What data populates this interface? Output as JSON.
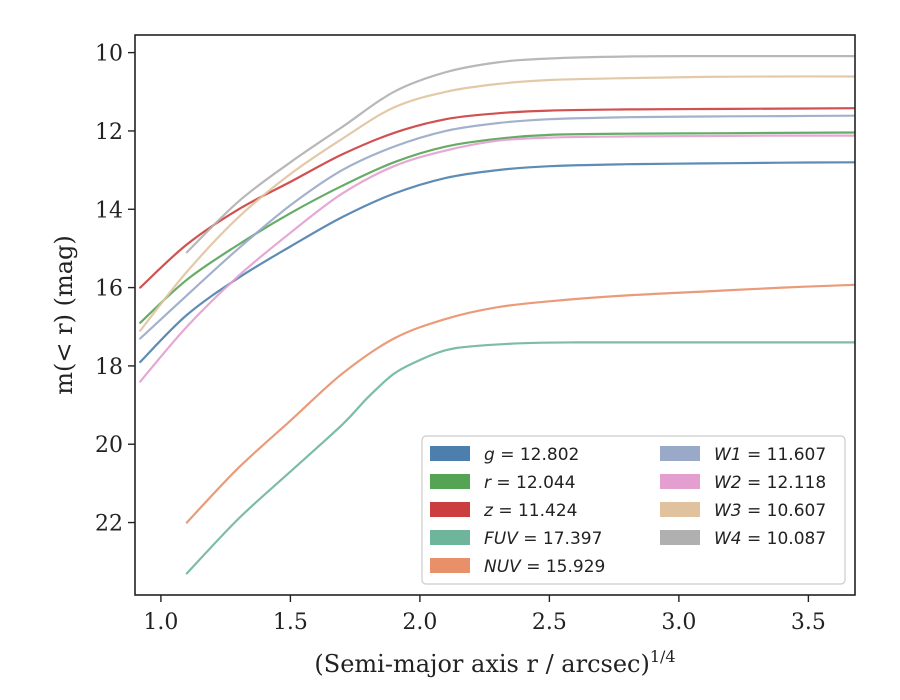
{
  "chart_data": {
    "type": "line",
    "title": "",
    "xlabel": "(Semi-major axis r / arcsec)",
    "xlabel_sup": "1/4",
    "ylabel": "m(< r) (mag)",
    "xlim": [
      0.9,
      3.68
    ],
    "ylim": [
      23.85,
      9.55
    ],
    "y_inverted": true,
    "x_ticks": [
      1.0,
      1.5,
      2.0,
      2.5,
      3.0,
      3.5
    ],
    "x_tick_labels": [
      "1.0",
      "1.5",
      "2.0",
      "2.5",
      "3.0",
      "3.5"
    ],
    "y_ticks": [
      10,
      12,
      14,
      16,
      18,
      20,
      22
    ],
    "y_tick_labels": [
      "10",
      "12",
      "14",
      "16",
      "18",
      "20",
      "22"
    ],
    "grid": false,
    "legend_position": "bottom-right",
    "legend_columns": 2,
    "series": [
      {
        "name": "g",
        "legend": "g = 12.802",
        "color": "#4c7fad",
        "x": [
          0.92,
          1.1,
          1.3,
          1.5,
          1.7,
          1.9,
          2.1,
          2.3,
          2.5,
          2.8,
          3.1,
          3.4,
          3.68
        ],
        "y": [
          17.9,
          16.7,
          15.75,
          14.95,
          14.2,
          13.6,
          13.2,
          13.0,
          12.9,
          12.85,
          12.83,
          12.81,
          12.8
        ]
      },
      {
        "name": "r",
        "legend": "r = 12.044",
        "color": "#55a355",
        "x": [
          0.92,
          1.1,
          1.3,
          1.5,
          1.7,
          1.9,
          2.1,
          2.3,
          2.5,
          2.8,
          3.1,
          3.4,
          3.68
        ],
        "y": [
          16.9,
          15.8,
          14.9,
          14.1,
          13.4,
          12.8,
          12.4,
          12.2,
          12.1,
          12.07,
          12.06,
          12.05,
          12.04
        ]
      },
      {
        "name": "z",
        "legend": "z = 11.424",
        "color": "#cc3e3e",
        "x": [
          0.92,
          1.1,
          1.3,
          1.5,
          1.7,
          1.9,
          2.1,
          2.3,
          2.5,
          2.8,
          3.1,
          3.4,
          3.68
        ],
        "y": [
          16.0,
          14.9,
          14.0,
          13.3,
          12.6,
          12.05,
          11.7,
          11.55,
          11.48,
          11.45,
          11.44,
          11.43,
          11.42
        ]
      },
      {
        "name": "FUV",
        "legend": "FUV = 17.397",
        "color": "#6fb59b",
        "x": [
          1.1,
          1.3,
          1.5,
          1.7,
          1.8,
          1.9,
          2.0,
          2.1,
          2.2,
          2.4,
          2.6,
          2.85,
          3.2,
          3.68
        ],
        "y": [
          23.3,
          21.9,
          20.7,
          19.5,
          18.8,
          18.2,
          17.85,
          17.6,
          17.5,
          17.42,
          17.4,
          17.4,
          17.4,
          17.4
        ]
      },
      {
        "name": "NUV",
        "legend": "NUV = 15.929",
        "color": "#e8906a",
        "x": [
          1.1,
          1.3,
          1.5,
          1.7,
          1.9,
          2.1,
          2.3,
          2.5,
          2.8,
          3.1,
          3.4,
          3.68
        ],
        "y": [
          22.0,
          20.6,
          19.4,
          18.2,
          17.3,
          16.8,
          16.5,
          16.35,
          16.2,
          16.1,
          16.0,
          15.93
        ]
      },
      {
        "name": "W1",
        "legend": "W1 = 11.607",
        "color": "#9aa9c8",
        "x": [
          0.92,
          1.1,
          1.3,
          1.5,
          1.7,
          1.9,
          2.1,
          2.3,
          2.5,
          2.8,
          3.1,
          3.4,
          3.68
        ],
        "y": [
          17.3,
          16.2,
          15.0,
          13.9,
          13.0,
          12.4,
          12.0,
          11.8,
          11.7,
          11.65,
          11.63,
          11.62,
          11.61
        ]
      },
      {
        "name": "W2",
        "legend": "W2 = 12.118",
        "color": "#e39fcf",
        "x": [
          0.92,
          1.1,
          1.3,
          1.5,
          1.7,
          1.9,
          2.1,
          2.3,
          2.5,
          2.8,
          3.1,
          3.4,
          3.68
        ],
        "y": [
          18.4,
          17.0,
          15.7,
          14.6,
          13.6,
          12.9,
          12.5,
          12.25,
          12.17,
          12.14,
          12.13,
          12.12,
          12.12
        ]
      },
      {
        "name": "W3",
        "legend": "W3 = 10.607",
        "color": "#e0c39e",
        "x": [
          0.92,
          1.1,
          1.3,
          1.5,
          1.7,
          1.9,
          2.1,
          2.3,
          2.5,
          2.8,
          3.1,
          3.4,
          3.68
        ],
        "y": [
          17.1,
          15.6,
          14.2,
          13.1,
          12.2,
          11.4,
          11.0,
          10.8,
          10.7,
          10.65,
          10.62,
          10.61,
          10.61
        ]
      },
      {
        "name": "W4",
        "legend": "W4 = 10.087",
        "color": "#b0b0b0",
        "x": [
          1.1,
          1.3,
          1.5,
          1.7,
          1.9,
          2.1,
          2.3,
          2.5,
          2.8,
          3.1,
          3.4,
          3.68
        ],
        "y": [
          15.1,
          13.8,
          12.8,
          11.9,
          11.0,
          10.5,
          10.25,
          10.15,
          10.1,
          10.09,
          10.09,
          10.09
        ]
      }
    ]
  }
}
